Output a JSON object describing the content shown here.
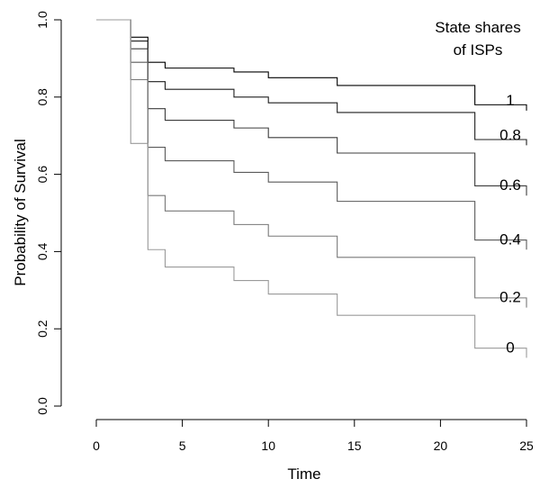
{
  "chart_data": {
    "type": "line",
    "step": true,
    "title": "",
    "xlabel": "Time",
    "ylabel": "Probability of Survival",
    "xlim": [
      0,
      25
    ],
    "ylim": [
      0,
      1
    ],
    "xticks": [
      0,
      5,
      10,
      15,
      20,
      25
    ],
    "yticks": [
      0.0,
      0.2,
      0.4,
      0.6,
      0.8,
      1.0
    ],
    "ytick_labels": [
      "0.0",
      "0.2",
      "0.4",
      "0.6",
      "0.8",
      "1.0"
    ],
    "grid": false,
    "legend": {
      "title_lines": [
        "State shares",
        "of ISPs"
      ],
      "placement": "top-right"
    },
    "times": [
      1,
      2,
      3,
      4,
      8,
      10,
      14,
      22,
      25
    ],
    "series": [
      {
        "name": "1",
        "color": "#000000",
        "values": [
          1,
          0.955,
          0.89,
          0.875,
          0.865,
          0.85,
          0.83,
          0.78,
          0.765
        ]
      },
      {
        "name": "0.8",
        "color": "#1e1e1e",
        "values": [
          1,
          0.945,
          0.84,
          0.82,
          0.8,
          0.785,
          0.76,
          0.69,
          0.675
        ]
      },
      {
        "name": "0.6",
        "color": "#3c3c3c",
        "values": [
          1,
          0.925,
          0.77,
          0.74,
          0.72,
          0.695,
          0.655,
          0.57,
          0.545
        ]
      },
      {
        "name": "0.4",
        "color": "#5a5a5a",
        "values": [
          1,
          0.89,
          0.67,
          0.635,
          0.605,
          0.58,
          0.53,
          0.43,
          0.405
        ]
      },
      {
        "name": "0.2",
        "color": "#787878",
        "values": [
          1,
          0.845,
          0.545,
          0.505,
          0.47,
          0.44,
          0.385,
          0.28,
          0.255
        ]
      },
      {
        "name": "0",
        "color": "#9a9a9a",
        "values": [
          1,
          0.68,
          0.405,
          0.36,
          0.325,
          0.29,
          0.235,
          0.15,
          0.125
        ]
      }
    ]
  }
}
